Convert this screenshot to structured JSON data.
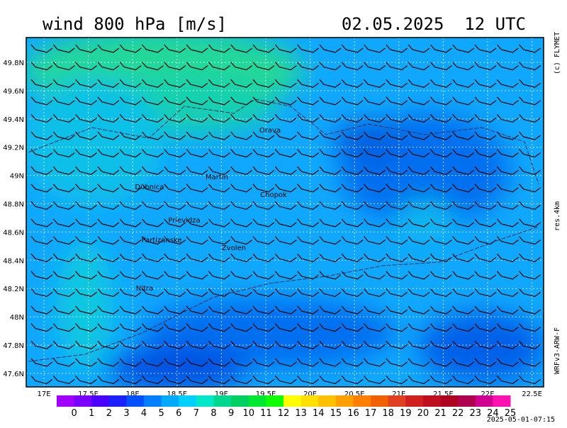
{
  "header": {
    "title": "wind 800 hPa [m/s]",
    "datetime": "02.05.2025  12 UTC"
  },
  "side": {
    "credit": "(c) FLYMET",
    "resolution": "res.4km",
    "model": "WRFv3-ARW-F"
  },
  "axes": {
    "lat_labels": [
      "49.8N",
      "49.6N",
      "49.4N",
      "49.2N",
      "49N",
      "48.8N",
      "48.6N",
      "48.4N",
      "48.2N",
      "48N",
      "47.8N",
      "47.6N"
    ],
    "lon_labels": [
      "17E",
      "17.5E",
      "18E",
      "18.5E",
      "19E",
      "19.5E",
      "20E",
      "20.5E",
      "21E",
      "21.5E",
      "22E",
      "22.5E"
    ]
  },
  "places": [
    "Orava",
    "Martin",
    "Dubnica",
    "Chopok",
    "Prievidza",
    "Partizanske",
    "Zvolen",
    "Nitra"
  ],
  "colorbar": {
    "labels": [
      0,
      1,
      2,
      3,
      4,
      5,
      6,
      7,
      8,
      9,
      10,
      11,
      12,
      13,
      14,
      15,
      16,
      17,
      18,
      19,
      20,
      21,
      22,
      23,
      24,
      25
    ],
    "colors": [
      "#a000ff",
      "#7a00ff",
      "#4a00ff",
      "#1a20ff",
      "#0050ff",
      "#0080ff",
      "#00aaff",
      "#00d0ff",
      "#00e8c8",
      "#00d890",
      "#00d060",
      "#00e830",
      "#10ff00",
      "#ffff00",
      "#ffe000",
      "#ffc000",
      "#ffa000",
      "#ff8000",
      "#f06000",
      "#e04020",
      "#d02020",
      "#c01020",
      "#b00020",
      "#b00050",
      "#d00090",
      "#ff10b0"
    ]
  },
  "timestamp": "2025-05-01-07:15"
}
